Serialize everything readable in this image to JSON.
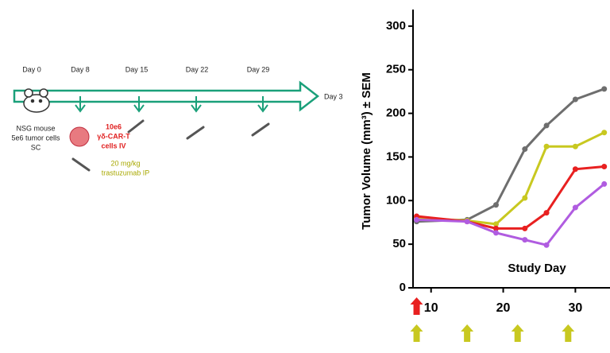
{
  "timeline": {
    "days": [
      "Day 0",
      "Day 8",
      "Day 15",
      "Day 22",
      "Day 29",
      "Day 3"
    ],
    "mouse_label": [
      "NSG mouse",
      "5e6 tumor cells",
      "SC"
    ],
    "car_t_label": [
      "10e6",
      "γδ-CAR-T",
      "cells IV"
    ],
    "trastuzumab_label": [
      "20 mg/kg",
      "trastuzumab IP"
    ]
  },
  "chart_data": {
    "type": "line",
    "y_label": "Tumor Volume (mm³) ± SEM",
    "x_label": "Study Day",
    "x": [
      8,
      15,
      19,
      23,
      26,
      30,
      34
    ],
    "series": [
      {
        "color": "#6e6e6e",
        "values": [
          76,
          78,
          95,
          159,
          186,
          216,
          228
        ]
      },
      {
        "color": "#c8c820",
        "values": [
          80,
          77,
          73,
          103,
          162,
          162,
          178
        ]
      },
      {
        "color": "#e82020",
        "values": [
          82,
          76,
          68,
          68,
          86,
          136,
          139
        ]
      },
      {
        "color": "#b05ce0",
        "values": [
          78,
          76,
          63,
          55,
          49,
          92,
          119
        ]
      }
    ],
    "xlim": [
      7.5,
      34.8
    ],
    "ylim": [
      0,
      319
    ],
    "xticks": [
      10,
      20,
      30
    ],
    "yticks": [
      0,
      50,
      100,
      150,
      200,
      250,
      300
    ],
    "grid": false,
    "car_t_days": [
      8
    ],
    "trastuzumab_days": [
      8,
      15,
      22,
      29
    ],
    "car_t_color": "#e82020",
    "trastuzumab_color": "#c8c820"
  }
}
